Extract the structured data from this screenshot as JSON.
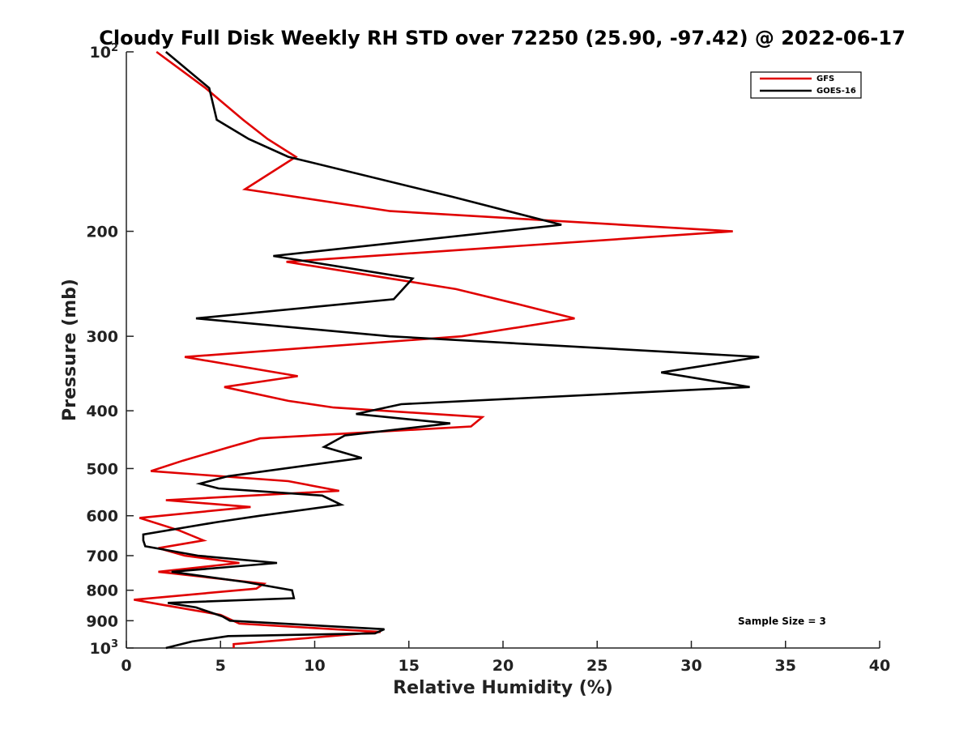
{
  "chart_data": {
    "type": "line",
    "title": "Cloudy Full Disk Weekly RH STD over 72250 (25.90, -97.42) @ 2022-06-17",
    "xlabel": "Relative Humidity (%)",
    "ylabel": "Pressure (mb)",
    "xlim": [
      0,
      40
    ],
    "ylim": [
      100,
      1000
    ],
    "y_scale": "log",
    "y_reversed": true,
    "grid": false,
    "legend_position": "top-right",
    "x_ticks": [
      "0",
      "5",
      "10",
      "15",
      "20",
      "25",
      "30",
      "35",
      "40"
    ],
    "y_ticks": [
      {
        "value": 100,
        "base": "10",
        "exp": "2"
      },
      {
        "value": 200,
        "label": "200"
      },
      {
        "value": 300,
        "label": "300"
      },
      {
        "value": 400,
        "label": "400"
      },
      {
        "value": 500,
        "label": "500"
      },
      {
        "value": 600,
        "label": "600"
      },
      {
        "value": 700,
        "label": "700"
      },
      {
        "value": 800,
        "label": "800"
      },
      {
        "value": 900,
        "label": "900"
      },
      {
        "value": 1000,
        "base": "10",
        "exp": "3"
      }
    ],
    "annotation": "Sample Size = 3",
    "series": [
      {
        "name": "GFS",
        "color": "#e00000",
        "points": [
          [
            1.6,
            100
          ],
          [
            4.2,
            115
          ],
          [
            6.2,
            130
          ],
          [
            7.5,
            140
          ],
          [
            9.0,
            150
          ],
          [
            6.3,
            170
          ],
          [
            14,
            185
          ],
          [
            32.2,
            200
          ],
          [
            8.5,
            225
          ],
          [
            14,
            240
          ],
          [
            17.5,
            250
          ],
          [
            20.8,
            265
          ],
          [
            23.8,
            280
          ],
          [
            17.8,
            300
          ],
          [
            3.1,
            325
          ],
          [
            9.1,
            350
          ],
          [
            5.2,
            365
          ],
          [
            8.6,
            385
          ],
          [
            11.0,
            395
          ],
          [
            18.9,
            410
          ],
          [
            18.3,
            425
          ],
          [
            7.1,
            445
          ],
          [
            5.5,
            460
          ],
          [
            3.0,
            485
          ],
          [
            1.3,
            505
          ],
          [
            8.6,
            525
          ],
          [
            11.3,
            545
          ],
          [
            2.1,
            565
          ],
          [
            6.6,
            580
          ],
          [
            0.7,
            605
          ],
          [
            2.8,
            635
          ],
          [
            4.1,
            660
          ],
          [
            1.7,
            680
          ],
          [
            3.1,
            700
          ],
          [
            6.0,
            720
          ],
          [
            1.7,
            745
          ],
          [
            7.3,
            780
          ],
          [
            6.9,
            795
          ],
          [
            0.4,
            830
          ],
          [
            1.8,
            845
          ],
          [
            5.0,
            880
          ],
          [
            6.0,
            910
          ],
          [
            13.5,
            940
          ],
          [
            10.0,
            960
          ],
          [
            5.7,
            985
          ],
          [
            5.7,
            1000
          ]
        ]
      },
      {
        "name": "GOES-16",
        "color": "#000000",
        "points": [
          [
            2.1,
            100
          ],
          [
            4.4,
            115
          ],
          [
            4.8,
            130
          ],
          [
            6.5,
            140
          ],
          [
            8.6,
            150
          ],
          [
            17.3,
            175
          ],
          [
            23.1,
            195
          ],
          [
            7.8,
            220
          ],
          [
            15.2,
            240
          ],
          [
            14.2,
            260
          ],
          [
            3.7,
            280
          ],
          [
            14.0,
            300
          ],
          [
            33.6,
            325
          ],
          [
            28.4,
            345
          ],
          [
            33.1,
            365
          ],
          [
            14.6,
            390
          ],
          [
            12.2,
            405
          ],
          [
            17.2,
            420
          ],
          [
            11.6,
            440
          ],
          [
            10.5,
            460
          ],
          [
            12.5,
            480
          ],
          [
            5.4,
            515
          ],
          [
            3.9,
            530
          ],
          [
            4.9,
            540
          ],
          [
            10.4,
            555
          ],
          [
            11.4,
            575
          ],
          [
            7.1,
            600
          ],
          [
            4.8,
            615
          ],
          [
            0.9,
            645
          ],
          [
            0.9,
            660
          ],
          [
            1.0,
            675
          ],
          [
            3.8,
            700
          ],
          [
            8.0,
            720
          ],
          [
            2.4,
            745
          ],
          [
            6.3,
            775
          ],
          [
            8.8,
            800
          ],
          [
            8.9,
            825
          ],
          [
            2.2,
            840
          ],
          [
            3.7,
            855
          ],
          [
            5.1,
            885
          ],
          [
            5.5,
            900
          ],
          [
            13.7,
            930
          ],
          [
            13.2,
            945
          ],
          [
            5.4,
            955
          ],
          [
            3.5,
            975
          ],
          [
            2.1,
            1000
          ]
        ]
      }
    ]
  }
}
